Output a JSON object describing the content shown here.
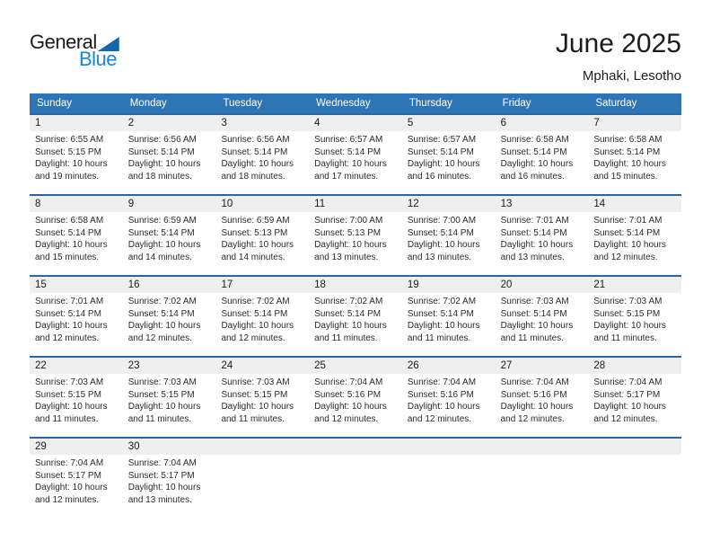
{
  "logo": {
    "text_top": "General",
    "text_bottom": "Blue"
  },
  "header": {
    "title": "June 2025",
    "subtitle": "Mphaki, Lesotho"
  },
  "colors": {
    "header_bg": "#2E75B6",
    "week_separator": "#2765A5",
    "day_band_bg": "#EFEFEF",
    "logo_blue": "#1A86CF",
    "logo_triangle": "#1667A9",
    "header_text": "#FFFFFF"
  },
  "weekday_headers": [
    "Sunday",
    "Monday",
    "Tuesday",
    "Wednesday",
    "Thursday",
    "Friday",
    "Saturday"
  ],
  "weeks": [
    [
      {
        "day": "1",
        "lines": [
          "Sunrise: 6:55 AM",
          "Sunset: 5:15 PM",
          "Daylight: 10 hours",
          "and 19 minutes."
        ]
      },
      {
        "day": "2",
        "lines": [
          "Sunrise: 6:56 AM",
          "Sunset: 5:14 PM",
          "Daylight: 10 hours",
          "and 18 minutes."
        ]
      },
      {
        "day": "3",
        "lines": [
          "Sunrise: 6:56 AM",
          "Sunset: 5:14 PM",
          "Daylight: 10 hours",
          "and 18 minutes."
        ]
      },
      {
        "day": "4",
        "lines": [
          "Sunrise: 6:57 AM",
          "Sunset: 5:14 PM",
          "Daylight: 10 hours",
          "and 17 minutes."
        ]
      },
      {
        "day": "5",
        "lines": [
          "Sunrise: 6:57 AM",
          "Sunset: 5:14 PM",
          "Daylight: 10 hours",
          "and 16 minutes."
        ]
      },
      {
        "day": "6",
        "lines": [
          "Sunrise: 6:58 AM",
          "Sunset: 5:14 PM",
          "Daylight: 10 hours",
          "and 16 minutes."
        ]
      },
      {
        "day": "7",
        "lines": [
          "Sunrise: 6:58 AM",
          "Sunset: 5:14 PM",
          "Daylight: 10 hours",
          "and 15 minutes."
        ]
      }
    ],
    [
      {
        "day": "8",
        "lines": [
          "Sunrise: 6:58 AM",
          "Sunset: 5:14 PM",
          "Daylight: 10 hours",
          "and 15 minutes."
        ]
      },
      {
        "day": "9",
        "lines": [
          "Sunrise: 6:59 AM",
          "Sunset: 5:14 PM",
          "Daylight: 10 hours",
          "and 14 minutes."
        ]
      },
      {
        "day": "10",
        "lines": [
          "Sunrise: 6:59 AM",
          "Sunset: 5:13 PM",
          "Daylight: 10 hours",
          "and 14 minutes."
        ]
      },
      {
        "day": "11",
        "lines": [
          "Sunrise: 7:00 AM",
          "Sunset: 5:13 PM",
          "Daylight: 10 hours",
          "and 13 minutes."
        ]
      },
      {
        "day": "12",
        "lines": [
          "Sunrise: 7:00 AM",
          "Sunset: 5:14 PM",
          "Daylight: 10 hours",
          "and 13 minutes."
        ]
      },
      {
        "day": "13",
        "lines": [
          "Sunrise: 7:01 AM",
          "Sunset: 5:14 PM",
          "Daylight: 10 hours",
          "and 13 minutes."
        ]
      },
      {
        "day": "14",
        "lines": [
          "Sunrise: 7:01 AM",
          "Sunset: 5:14 PM",
          "Daylight: 10 hours",
          "and 12 minutes."
        ]
      }
    ],
    [
      {
        "day": "15",
        "lines": [
          "Sunrise: 7:01 AM",
          "Sunset: 5:14 PM",
          "Daylight: 10 hours",
          "and 12 minutes."
        ]
      },
      {
        "day": "16",
        "lines": [
          "Sunrise: 7:02 AM",
          "Sunset: 5:14 PM",
          "Daylight: 10 hours",
          "and 12 minutes."
        ]
      },
      {
        "day": "17",
        "lines": [
          "Sunrise: 7:02 AM",
          "Sunset: 5:14 PM",
          "Daylight: 10 hours",
          "and 12 minutes."
        ]
      },
      {
        "day": "18",
        "lines": [
          "Sunrise: 7:02 AM",
          "Sunset: 5:14 PM",
          "Daylight: 10 hours",
          "and 11 minutes."
        ]
      },
      {
        "day": "19",
        "lines": [
          "Sunrise: 7:02 AM",
          "Sunset: 5:14 PM",
          "Daylight: 10 hours",
          "and 11 minutes."
        ]
      },
      {
        "day": "20",
        "lines": [
          "Sunrise: 7:03 AM",
          "Sunset: 5:14 PM",
          "Daylight: 10 hours",
          "and 11 minutes."
        ]
      },
      {
        "day": "21",
        "lines": [
          "Sunrise: 7:03 AM",
          "Sunset: 5:15 PM",
          "Daylight: 10 hours",
          "and 11 minutes."
        ]
      }
    ],
    [
      {
        "day": "22",
        "lines": [
          "Sunrise: 7:03 AM",
          "Sunset: 5:15 PM",
          "Daylight: 10 hours",
          "and 11 minutes."
        ]
      },
      {
        "day": "23",
        "lines": [
          "Sunrise: 7:03 AM",
          "Sunset: 5:15 PM",
          "Daylight: 10 hours",
          "and 11 minutes."
        ]
      },
      {
        "day": "24",
        "lines": [
          "Sunrise: 7:03 AM",
          "Sunset: 5:15 PM",
          "Daylight: 10 hours",
          "and 11 minutes."
        ]
      },
      {
        "day": "25",
        "lines": [
          "Sunrise: 7:04 AM",
          "Sunset: 5:16 PM",
          "Daylight: 10 hours",
          "and 12 minutes."
        ]
      },
      {
        "day": "26",
        "lines": [
          "Sunrise: 7:04 AM",
          "Sunset: 5:16 PM",
          "Daylight: 10 hours",
          "and 12 minutes."
        ]
      },
      {
        "day": "27",
        "lines": [
          "Sunrise: 7:04 AM",
          "Sunset: 5:16 PM",
          "Daylight: 10 hours",
          "and 12 minutes."
        ]
      },
      {
        "day": "28",
        "lines": [
          "Sunrise: 7:04 AM",
          "Sunset: 5:17 PM",
          "Daylight: 10 hours",
          "and 12 minutes."
        ]
      }
    ],
    [
      {
        "day": "29",
        "lines": [
          "Sunrise: 7:04 AM",
          "Sunset: 5:17 PM",
          "Daylight: 10 hours",
          "and 12 minutes."
        ]
      },
      {
        "day": "30",
        "lines": [
          "Sunrise: 7:04 AM",
          "Sunset: 5:17 PM",
          "Daylight: 10 hours",
          "and 13 minutes."
        ]
      },
      null,
      null,
      null,
      null,
      null
    ]
  ]
}
